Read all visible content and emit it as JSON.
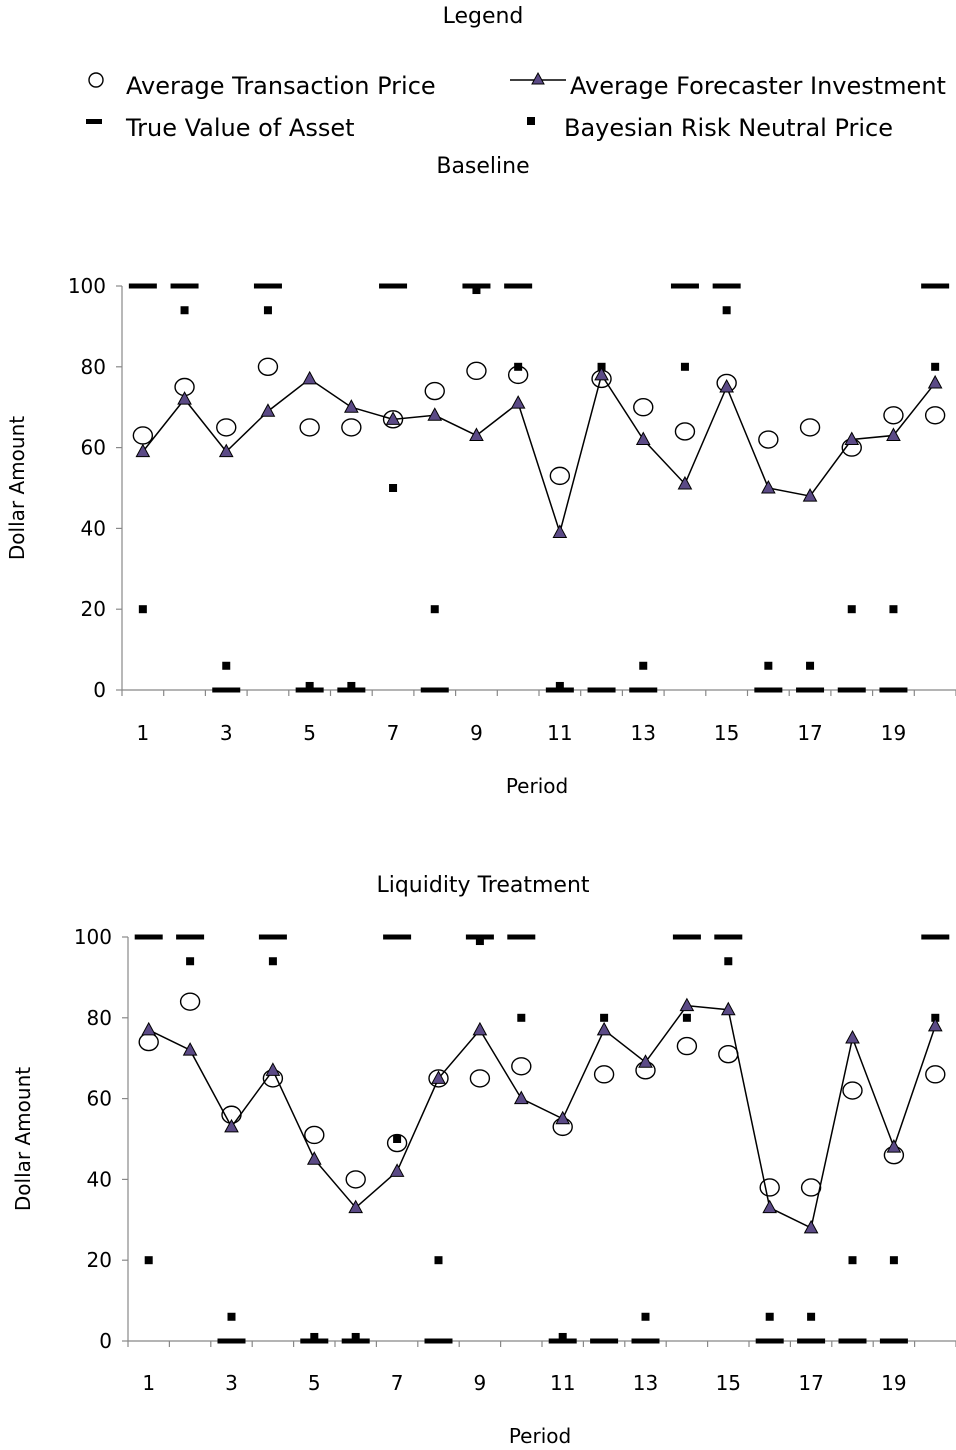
{
  "legend": {
    "title": "Legend",
    "items": [
      {
        "label": "Average Transaction Price",
        "icon": "open-circle-icon"
      },
      {
        "label": "Average Forecaster Investment",
        "icon": "line-triangle-icon"
      },
      {
        "label": "True Value of Asset",
        "icon": "dash-icon"
      },
      {
        "label": "Bayesian Risk Neutral Price",
        "icon": "square-icon"
      }
    ]
  },
  "colors": {
    "circle_stroke": "#000000",
    "triangle_fill": "#5b4a86",
    "line": "#000000",
    "marker": "#000000"
  },
  "chart_data": [
    {
      "type": "scatter",
      "title": "Baseline",
      "xlabel": "Period",
      "ylabel": "Dollar Amount",
      "ylim": [
        0,
        100
      ],
      "yticks": [
        0,
        20,
        40,
        60,
        80,
        100
      ],
      "xticks": [
        1,
        3,
        5,
        7,
        9,
        11,
        13,
        15,
        17,
        19
      ],
      "x": [
        1,
        2,
        3,
        4,
        5,
        6,
        7,
        8,
        9,
        10,
        11,
        12,
        13,
        14,
        15,
        16,
        17,
        18,
        19,
        20
      ],
      "series": [
        {
          "name": "Average Transaction Price",
          "marker": "open-circle",
          "values": [
            63,
            75,
            65,
            80,
            65,
            65,
            67,
            74,
            79,
            78,
            53,
            77,
            70,
            64,
            76,
            62,
            65,
            60,
            68,
            68
          ]
        },
        {
          "name": "Average Forecaster Investment",
          "marker": "triangle-line",
          "values": [
            59,
            72,
            59,
            69,
            77,
            70,
            67,
            68,
            63,
            71,
            39,
            78,
            62,
            51,
            75,
            50,
            48,
            62,
            63,
            76
          ]
        },
        {
          "name": "True Value of Asset",
          "marker": "dash",
          "values": [
            100,
            100,
            0,
            100,
            0,
            0,
            100,
            0,
            100,
            100,
            0,
            0,
            0,
            100,
            100,
            0,
            0,
            0,
            0,
            100
          ]
        },
        {
          "name": "Bayesian Risk Neutral Price",
          "marker": "square",
          "values": [
            20,
            94,
            6,
            94,
            1,
            1,
            50,
            20,
            99,
            80,
            1,
            80,
            6,
            80,
            94,
            6,
            6,
            20,
            20,
            80
          ]
        }
      ]
    },
    {
      "type": "scatter",
      "title": "Liquidity Treatment",
      "xlabel": "Period",
      "ylabel": "Dollar Amount",
      "ylim": [
        0,
        100
      ],
      "yticks": [
        0,
        20,
        40,
        60,
        80,
        100
      ],
      "xticks": [
        1,
        3,
        5,
        7,
        9,
        11,
        13,
        15,
        17,
        19
      ],
      "x": [
        1,
        2,
        3,
        4,
        5,
        6,
        7,
        8,
        9,
        10,
        11,
        12,
        13,
        14,
        15,
        16,
        17,
        18,
        19,
        20
      ],
      "series": [
        {
          "name": "Average Transaction Price",
          "marker": "open-circle",
          "values": [
            74,
            84,
            56,
            65,
            51,
            40,
            49,
            65,
            65,
            68,
            53,
            66,
            67,
            73,
            71,
            38,
            38,
            62,
            46,
            66
          ]
        },
        {
          "name": "Average Forecaster Investment",
          "marker": "triangle-line",
          "values": [
            77,
            72,
            53,
            67,
            45,
            33,
            42,
            65,
            77,
            60,
            55,
            77,
            69,
            83,
            82,
            33,
            28,
            75,
            48,
            78
          ]
        },
        {
          "name": "True Value of Asset",
          "marker": "dash",
          "values": [
            100,
            100,
            0,
            100,
            0,
            0,
            100,
            0,
            100,
            100,
            0,
            0,
            0,
            100,
            100,
            0,
            0,
            0,
            0,
            100
          ]
        },
        {
          "name": "Bayesian Risk Neutral Price",
          "marker": "square",
          "values": [
            20,
            94,
            6,
            94,
            1,
            1,
            50,
            20,
            99,
            80,
            1,
            80,
            6,
            80,
            94,
            6,
            6,
            20,
            20,
            80
          ]
        }
      ]
    }
  ]
}
